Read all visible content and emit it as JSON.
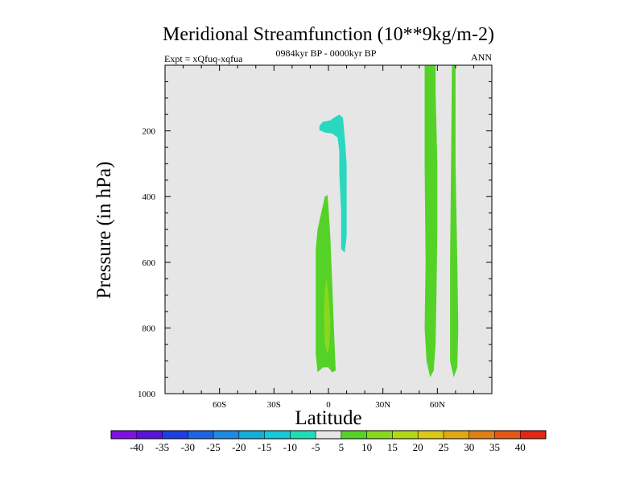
{
  "chart_data": {
    "type": "contour",
    "title": "Meridional Streamfunction (10**9kg/m-2)",
    "subtitle_left": "Expt = xQfuq-xqfua",
    "subtitle_center": "0984kyr BP - 0000kyr BP",
    "subtitle_right": "ANN",
    "xlabel": "Latitude",
    "ylabel": "Pressure (in hPa)",
    "xlim": [
      -90,
      90
    ],
    "ylim": [
      1000,
      0
    ],
    "x_ticks": [
      {
        "value": -60,
        "label": "60S"
      },
      {
        "value": -30,
        "label": "30S"
      },
      {
        "value": 0,
        "label": "0"
      },
      {
        "value": 30,
        "label": "30N"
      },
      {
        "value": 60,
        "label": "60N"
      }
    ],
    "y_ticks": [
      {
        "value": 200,
        "label": "200"
      },
      {
        "value": 400,
        "label": "400"
      },
      {
        "value": 600,
        "label": "600"
      },
      {
        "value": 800,
        "label": "800"
      },
      {
        "value": 1000,
        "label": "1000"
      }
    ],
    "x_minor_step": 10,
    "y_minor_step": 50,
    "background_color": "#e6e6e6",
    "contour_regions": [
      {
        "name": "neg-5-to-10-upper-tropics",
        "range": [
          -10,
          -5
        ],
        "color": "#2ad8c0",
        "points": [
          [
            -5,
            185
          ],
          [
            -3,
            172
          ],
          [
            1,
            168
          ],
          [
            3,
            160
          ],
          [
            6,
            150
          ],
          [
            8,
            160
          ],
          [
            9,
            220
          ],
          [
            10,
            300
          ],
          [
            10,
            420
          ],
          [
            10,
            520
          ],
          [
            9,
            570
          ],
          [
            7,
            560
          ],
          [
            7,
            450
          ],
          [
            6,
            330
          ],
          [
            6,
            260
          ],
          [
            5,
            220
          ],
          [
            2,
            208
          ],
          [
            -2,
            205
          ],
          [
            -5,
            198
          ]
        ]
      },
      {
        "name": "pos-5-to-10-tropics-lower",
        "range": [
          5,
          10
        ],
        "color": "#55d228",
        "points": [
          [
            -6,
            935
          ],
          [
            -7,
            880
          ],
          [
            -7,
            700
          ],
          [
            -7,
            560
          ],
          [
            -6,
            500
          ],
          [
            -4,
            450
          ],
          [
            -2,
            400
          ],
          [
            -0.5,
            395
          ],
          [
            0,
            430
          ],
          [
            1,
            520
          ],
          [
            2,
            650
          ],
          [
            3,
            800
          ],
          [
            4,
            930
          ],
          [
            2,
            935
          ],
          [
            0,
            920
          ],
          [
            -3,
            920
          ]
        ]
      },
      {
        "name": "pos-10-to-15-tropics-core",
        "range": [
          10,
          15
        ],
        "color": "#88d81e",
        "points": [
          [
            -2,
            850
          ],
          [
            -2.5,
            760
          ],
          [
            -2,
            680
          ],
          [
            -1,
            650
          ],
          [
            0,
            700
          ],
          [
            1,
            780
          ],
          [
            0.5,
            850
          ],
          [
            -0.5,
            880
          ]
        ]
      },
      {
        "name": "pos-5-to-10-midlat-band-a",
        "range": [
          5,
          10
        ],
        "color": "#55d228",
        "points": [
          [
            53,
            0
          ],
          [
            59,
            0
          ],
          [
            59,
            80
          ],
          [
            60,
            300
          ],
          [
            60,
            500
          ],
          [
            59.5,
            700
          ],
          [
            59,
            850
          ],
          [
            58,
            930
          ],
          [
            56,
            950
          ],
          [
            54,
            900
          ],
          [
            53,
            800
          ],
          [
            53.5,
            600
          ],
          [
            53,
            300
          ]
        ]
      },
      {
        "name": "pos-5-to-10-midlat-band-b",
        "range": [
          5,
          10
        ],
        "color": "#55d228",
        "points": [
          [
            68,
            0
          ],
          [
            70,
            0
          ],
          [
            70,
            300
          ],
          [
            71,
            600
          ],
          [
            71.5,
            800
          ],
          [
            71,
            920
          ],
          [
            69,
            950
          ],
          [
            67,
            900
          ],
          [
            67,
            600
          ],
          [
            67.5,
            300
          ]
        ]
      }
    ],
    "colorbar": {
      "levels": [
        "-40",
        "-35",
        "-30",
        "-25",
        "-20",
        "-15",
        "-10",
        "-5",
        "5",
        "10",
        "15",
        "20",
        "25",
        "30",
        "35",
        "40"
      ],
      "colors": [
        "#8010e0",
        "#5a14d8",
        "#1e3ee0",
        "#1e64e0",
        "#1e8ae0",
        "#16acd8",
        "#16c8d8",
        "#22dcb8",
        "#e6e6e6",
        "#55d228",
        "#88d81e",
        "#b4d818",
        "#dcc818",
        "#e0a818",
        "#e08018",
        "#e05818",
        "#e02814"
      ]
    }
  }
}
